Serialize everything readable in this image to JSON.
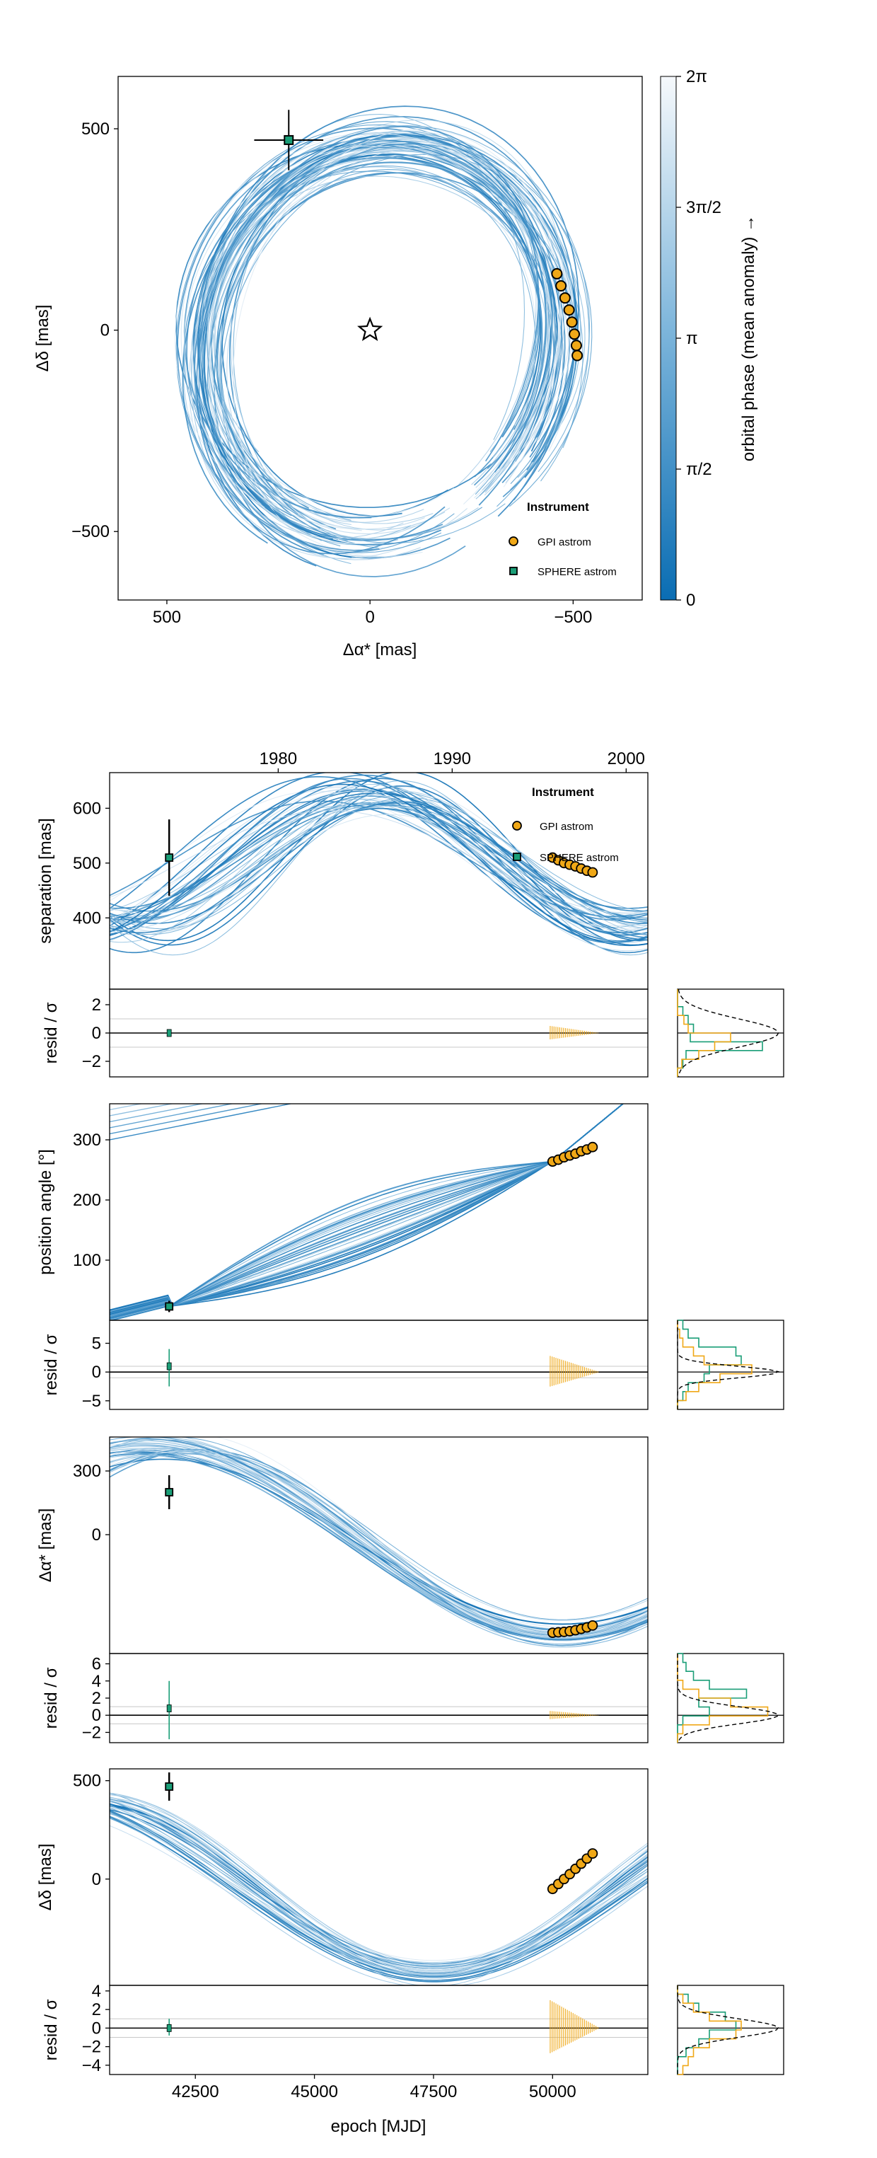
{
  "chart_data": [
    {
      "type": "line",
      "panel": "sky",
      "xlabel": "Δα* [mas]",
      "ylabel": "Δδ [mas]",
      "xlim": [
        620,
        -670
      ],
      "ylim": [
        -670,
        630
      ],
      "xticks": [
        {
          "v": 500,
          "label": "500"
        },
        {
          "v": 0,
          "label": "0"
        },
        {
          "v": -500,
          "label": "−500"
        }
      ],
      "yticks": [
        {
          "v": 500,
          "label": "500"
        },
        {
          "v": 0,
          "label": "0"
        },
        {
          "v": -500,
          "label": "−500"
        }
      ],
      "star_marker": [
        0,
        0
      ],
      "gpi_points": [
        [
          -460,
          140
        ],
        [
          -470,
          110
        ],
        [
          -480,
          80
        ],
        [
          -490,
          50
        ],
        [
          -497,
          20
        ],
        [
          -503,
          -10
        ],
        [
          -508,
          -38
        ],
        [
          -510,
          -63
        ]
      ],
      "sphere_point": [
        200,
        472
      ],
      "sphere_error": {
        "dx": 85,
        "dy": 75
      },
      "legend": {
        "title": "Instrument",
        "entries": [
          "GPI astrom",
          "SPHERE astrom"
        ],
        "placement": "bottom-right"
      },
      "colorbar": {
        "label": "orbital phase (mean anomaly) →",
        "ticks": [
          "0",
          "π/2",
          "π",
          "3π/2",
          "2π"
        ]
      }
    },
    {
      "type": "line",
      "panel": "separation",
      "ylabel": "separation [mas]",
      "top_axis_ticks": [
        "1980",
        "1990",
        "2000"
      ],
      "yticks": [
        "400",
        "500",
        "600"
      ],
      "ylim": [
        270,
        665
      ],
      "gpi_points": [
        [
          50000,
          510
        ],
        [
          50120,
          505
        ],
        [
          50240,
          500
        ],
        [
          50360,
          497
        ],
        [
          50480,
          494
        ],
        [
          50600,
          490
        ],
        [
          50720,
          486
        ],
        [
          50840,
          483
        ]
      ],
      "sphere_point": [
        41950,
        510
      ],
      "sphere_error": 70,
      "legend": {
        "title": "Instrument",
        "entries": [
          "GPI astrom",
          "SPHERE astrom"
        ],
        "placement": "top-right"
      }
    },
    {
      "type": "scatter",
      "panel": "separation-residuals",
      "ylabel": "resid / σ",
      "yticks": [
        "2",
        "0",
        "−2"
      ],
      "ylim": [
        -3.1,
        3.1
      ]
    },
    {
      "type": "line",
      "panel": "position-angle",
      "ylabel": "position angle [°]",
      "yticks": [
        "100",
        "200",
        "300"
      ],
      "ylim": [
        0,
        360
      ],
      "gpi_points": [
        [
          50000,
          264
        ],
        [
          50120,
          267
        ],
        [
          50240,
          271
        ],
        [
          50360,
          274
        ],
        [
          50480,
          277
        ],
        [
          50600,
          281
        ],
        [
          50720,
          284
        ],
        [
          50840,
          288
        ]
      ],
      "sphere_point": [
        41950,
        23
      ]
    },
    {
      "type": "scatter",
      "panel": "position-angle-residuals",
      "ylabel": "resid / σ",
      "yticks": [
        "5",
        "0",
        "−5"
      ],
      "ylim": [
        -6.5,
        9
      ]
    },
    {
      "type": "line",
      "panel": "delta-ra",
      "ylabel": "Δα* [mas]",
      "yticks": [
        "0",
        "300"
      ],
      "ylim": [
        -560,
        460
      ],
      "gpi_points": [
        [
          50000,
          -462
        ],
        [
          50120,
          -460
        ],
        [
          50240,
          -458
        ],
        [
          50360,
          -455
        ],
        [
          50480,
          -450
        ],
        [
          50600,
          -444
        ],
        [
          50720,
          -437
        ],
        [
          50840,
          -428
        ]
      ],
      "sphere_point": [
        41950,
        200
      ]
    },
    {
      "type": "scatter",
      "panel": "delta-ra-residuals",
      "ylabel": "resid / σ",
      "yticks": [
        "6",
        "4",
        "2",
        "0",
        "−2"
      ],
      "ylim": [
        -3.2,
        7.2
      ]
    },
    {
      "type": "line",
      "panel": "delta-dec",
      "ylabel": "Δδ [mas]",
      "yticks": [
        "500",
        "0"
      ],
      "ylim": [
        -540,
        560
      ],
      "gpi_points": [
        [
          50000,
          -50
        ],
        [
          50120,
          -25
        ],
        [
          50240,
          0
        ],
        [
          50360,
          25
        ],
        [
          50480,
          52
        ],
        [
          50600,
          78
        ],
        [
          50720,
          104
        ],
        [
          50840,
          130
        ]
      ],
      "sphere_point": [
        41950,
        470
      ]
    },
    {
      "type": "scatter",
      "panel": "delta-dec-residuals",
      "xlabel": "epoch [MJD]",
      "ylabel": "resid / σ",
      "xlim": [
        40700,
        52000
      ],
      "xticks": [
        "42500",
        "45000",
        "47500",
        "50000"
      ],
      "yticks": [
        "4",
        "2",
        "0",
        "−2",
        "−4"
      ],
      "ylim": [
        -5,
        4.6
      ]
    }
  ]
}
